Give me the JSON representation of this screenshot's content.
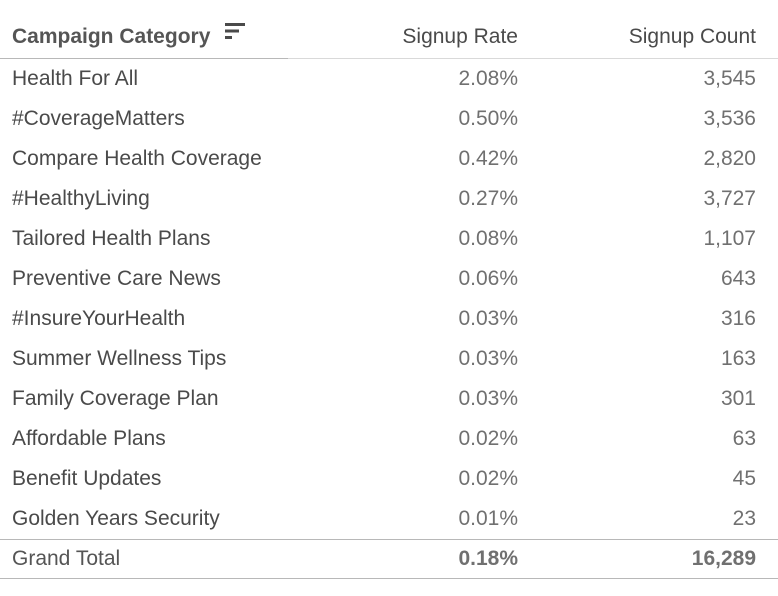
{
  "chart_data": {
    "type": "table",
    "columns": [
      "Campaign Category",
      "Signup Rate",
      "Signup Count"
    ],
    "rows": [
      [
        "Health For All",
        "2.08%",
        "3,545"
      ],
      [
        "#CoverageMatters",
        "0.50%",
        "3,536"
      ],
      [
        "Compare Health Coverage",
        "0.42%",
        "2,820"
      ],
      [
        "#HealthyLiving",
        "0.27%",
        "3,727"
      ],
      [
        "Tailored Health Plans",
        "0.08%",
        "1,107"
      ],
      [
        "Preventive Care News",
        "0.06%",
        "643"
      ],
      [
        "#InsureYourHealth",
        "0.03%",
        "316"
      ],
      [
        "Summer Wellness Tips",
        "0.03%",
        "163"
      ],
      [
        "Family Coverage Plan",
        "0.03%",
        "301"
      ],
      [
        "Affordable Plans",
        "0.02%",
        "63"
      ],
      [
        "Benefit Updates",
        "0.02%",
        "45"
      ],
      [
        "Golden Years Security",
        "0.01%",
        "23"
      ]
    ],
    "total": [
      "Grand Total",
      "0.18%",
      "16,289"
    ],
    "sorted_by": "Signup Rate",
    "sort_order": "descending"
  },
  "icons": {
    "sort": "sort-descending-icon"
  },
  "colors": {
    "header_text": "#555555",
    "body_text": "#4a4a4a",
    "value_text": "#707070",
    "rule": "#b8b8b8"
  }
}
